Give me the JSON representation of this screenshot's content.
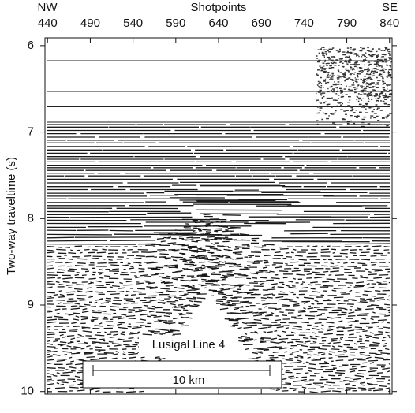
{
  "chart_data": {
    "type": "seismic-section",
    "x_label": "Shotpoints",
    "y_label": "Two-way traveltime (s)",
    "left_label": "NW",
    "right_label": "SE",
    "xlim": [
      437,
      843
    ],
    "xticks": [
      440,
      490,
      540,
      590,
      640,
      690,
      740,
      790,
      840
    ],
    "ylim": [
      5.91,
      10.03
    ],
    "yticks": [
      6,
      7,
      8,
      9,
      10
    ],
    "y_inverted": true,
    "annotation": "Lusigal Line 4",
    "scale_bar_label": "10 km"
  }
}
